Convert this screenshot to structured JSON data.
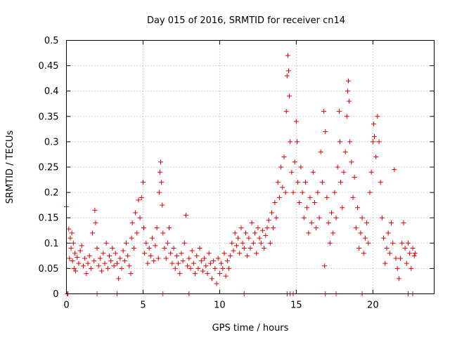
{
  "chart_data": {
    "type": "scatter",
    "title": "Day 015 of 2016, SRMTID for receiver cn14",
    "xlabel": "GPS time / hours",
    "ylabel": "SRMTID / TECUs",
    "xlim": [
      0,
      24
    ],
    "ylim": [
      0,
      0.5
    ],
    "x_ticks": [
      0,
      5,
      10,
      15,
      20
    ],
    "x_tick_labels": [
      "0",
      "5",
      "10",
      "15",
      "20"
    ],
    "y_ticks": [
      0,
      0.05,
      0.1,
      0.15,
      0.2,
      0.25,
      0.3,
      0.35,
      0.4,
      0.45,
      0.5
    ],
    "y_tick_labels": [
      "0",
      "0.05",
      "0.1",
      "0.15",
      "0.2",
      "0.25",
      "0.3",
      "0.35",
      "0.4",
      "0.45",
      "0.5"
    ],
    "grid": true,
    "marker": "+",
    "color": "#e00000",
    "series": [
      {
        "name": "SRMTID",
        "points": [
          [
            0.0,
            0.172
          ],
          [
            0.1,
            0.0
          ],
          [
            0.15,
            0.128
          ],
          [
            0.2,
            0.07
          ],
          [
            0.25,
            0.11
          ],
          [
            0.3,
            0.09
          ],
          [
            0.35,
            0.12
          ],
          [
            0.4,
            0.065
          ],
          [
            0.45,
            0.1
          ],
          [
            0.5,
            0.05
          ],
          [
            0.55,
            0.08
          ],
          [
            0.6,
            0.045
          ],
          [
            0.7,
            0.072
          ],
          [
            0.8,
            0.06
          ],
          [
            0.9,
            0.085
          ],
          [
            1.0,
            0.095
          ],
          [
            1.1,
            0.055
          ],
          [
            1.2,
            0.07
          ],
          [
            1.3,
            0.04
          ],
          [
            1.4,
            0.06
          ],
          [
            1.5,
            0.075
          ],
          [
            1.6,
            0.05
          ],
          [
            1.7,
            0.12
          ],
          [
            1.8,
            0.065
          ],
          [
            1.85,
            0.165
          ],
          [
            1.9,
            0.14
          ],
          [
            2.0,
            0.09
          ],
          [
            2.1,
            0.055
          ],
          [
            2.2,
            0.07
          ],
          [
            2.3,
            0.045
          ],
          [
            2.4,
            0.08
          ],
          [
            2.5,
            0.06
          ],
          [
            2.6,
            0.1
          ],
          [
            2.7,
            0.05
          ],
          [
            2.8,
            0.075
          ],
          [
            2.9,
            0.065
          ],
          [
            3.0,
            0.09
          ],
          [
            3.1,
            0.055
          ],
          [
            3.2,
            0.08
          ],
          [
            3.3,
            0.06
          ],
          [
            3.4,
            0.03
          ],
          [
            3.5,
            0.07
          ],
          [
            3.6,
            0.05
          ],
          [
            3.7,
            0.085
          ],
          [
            3.8,
            0.065
          ],
          [
            3.9,
            0.1
          ],
          [
            4.0,
            0.075
          ],
          [
            4.1,
            0.055
          ],
          [
            4.2,
            0.04
          ],
          [
            4.25,
            0.11
          ],
          [
            4.3,
            0.14
          ],
          [
            4.4,
            0.09
          ],
          [
            4.5,
            0.16
          ],
          [
            4.6,
            0.12
          ],
          [
            4.7,
            0.185
          ],
          [
            4.8,
            0.15
          ],
          [
            4.9,
            0.19
          ],
          [
            5.0,
            0.22
          ],
          [
            5.05,
            0.13
          ],
          [
            5.1,
            0.08
          ],
          [
            5.2,
            0.1
          ],
          [
            5.3,
            0.06
          ],
          [
            5.4,
            0.09
          ],
          [
            5.5,
            0.075
          ],
          [
            5.6,
            0.11
          ],
          [
            5.7,
            0.065
          ],
          [
            5.8,
            0.095
          ],
          [
            5.9,
            0.13
          ],
          [
            6.0,
            0.07
          ],
          [
            6.05,
            0.2
          ],
          [
            6.1,
            0.24
          ],
          [
            6.15,
            0.26
          ],
          [
            6.2,
            0.22
          ],
          [
            6.25,
            0.175
          ],
          [
            6.3,
            0.12
          ],
          [
            6.4,
            0.09
          ],
          [
            6.5,
            0.07
          ],
          [
            6.6,
            0.1
          ],
          [
            6.7,
            0.13
          ],
          [
            6.8,
            0.08
          ],
          [
            6.9,
            0.06
          ],
          [
            7.0,
            0.09
          ],
          [
            7.1,
            0.05
          ],
          [
            7.2,
            0.075
          ],
          [
            7.3,
            0.06
          ],
          [
            7.4,
            0.04
          ],
          [
            7.5,
            0.08
          ],
          [
            7.6,
            0.065
          ],
          [
            7.7,
            0.1
          ],
          [
            7.8,
            0.155
          ],
          [
            7.9,
            0.055
          ],
          [
            8.0,
            0.07
          ],
          [
            8.1,
            0.05
          ],
          [
            8.2,
            0.085
          ],
          [
            8.3,
            0.06
          ],
          [
            8.4,
            0.04
          ],
          [
            8.5,
            0.075
          ],
          [
            8.6,
            0.05
          ],
          [
            8.7,
            0.09
          ],
          [
            8.8,
            0.065
          ],
          [
            8.9,
            0.045
          ],
          [
            9.0,
            0.07
          ],
          [
            9.1,
            0.055
          ],
          [
            9.2,
            0.04
          ],
          [
            9.3,
            0.08
          ],
          [
            9.4,
            0.06
          ],
          [
            9.5,
            0.03
          ],
          [
            9.6,
            0.065
          ],
          [
            9.7,
            0.05
          ],
          [
            9.8,
            0.02
          ],
          [
            9.9,
            0.07
          ],
          [
            10.0,
            0.04
          ],
          [
            10.1,
            0.06
          ],
          [
            10.2,
            0.05
          ],
          [
            10.3,
            0.08
          ],
          [
            10.4,
            0.035
          ],
          [
            10.5,
            0.065
          ],
          [
            10.6,
            0.05
          ],
          [
            10.7,
            0.075
          ],
          [
            10.8,
            0.1
          ],
          [
            10.9,
            0.085
          ],
          [
            11.0,
            0.12
          ],
          [
            11.1,
            0.095
          ],
          [
            11.2,
            0.11
          ],
          [
            11.3,
            0.08
          ],
          [
            11.4,
            0.13
          ],
          [
            11.5,
            0.1
          ],
          [
            11.6,
            0.09
          ],
          [
            11.7,
            0.12
          ],
          [
            11.8,
            0.075
          ],
          [
            11.9,
            0.11
          ],
          [
            12.0,
            0.09
          ],
          [
            12.1,
            0.14
          ],
          [
            12.2,
            0.1
          ],
          [
            12.3,
            0.12
          ],
          [
            12.4,
            0.08
          ],
          [
            12.5,
            0.13
          ],
          [
            12.6,
            0.11
          ],
          [
            12.7,
            0.1
          ],
          [
            12.8,
            0.125
          ],
          [
            12.9,
            0.09
          ],
          [
            13.0,
            0.115
          ],
          [
            13.1,
            0.13
          ],
          [
            13.2,
            0.145
          ],
          [
            13.3,
            0.1
          ],
          [
            13.4,
            0.16
          ],
          [
            13.5,
            0.13
          ],
          [
            13.6,
            0.18
          ],
          [
            13.7,
            0.15
          ],
          [
            13.8,
            0.22
          ],
          [
            13.9,
            0.19
          ],
          [
            14.0,
            0.25
          ],
          [
            14.1,
            0.21
          ],
          [
            14.2,
            0.27
          ],
          [
            14.3,
            0.2
          ],
          [
            14.35,
            0.36
          ],
          [
            14.4,
            0.43
          ],
          [
            14.45,
            0.47
          ],
          [
            14.5,
            0.44
          ],
          [
            14.55,
            0.39
          ],
          [
            14.6,
            0.3
          ],
          [
            14.7,
            0.24
          ],
          [
            14.8,
            0.2
          ],
          [
            14.9,
            0.26
          ],
          [
            15.0,
            0.34
          ],
          [
            15.05,
            0.3
          ],
          [
            15.1,
            0.22
          ],
          [
            15.2,
            0.18
          ],
          [
            15.3,
            0.25
          ],
          [
            15.4,
            0.2
          ],
          [
            15.5,
            0.15
          ],
          [
            15.6,
            0.22
          ],
          [
            15.7,
            0.17
          ],
          [
            15.8,
            0.12
          ],
          [
            15.9,
            0.19
          ],
          [
            16.0,
            0.14
          ],
          [
            16.1,
            0.24
          ],
          [
            16.2,
            0.18
          ],
          [
            16.3,
            0.13
          ],
          [
            16.4,
            0.2
          ],
          [
            16.5,
            0.15
          ],
          [
            16.6,
            0.28
          ],
          [
            16.7,
            0.22
          ],
          [
            16.8,
            0.36
          ],
          [
            16.85,
            0.055
          ],
          [
            16.9,
            0.32
          ],
          [
            17.0,
            0.19
          ],
          [
            17.1,
            0.14
          ],
          [
            17.2,
            0.1
          ],
          [
            17.3,
            0.16
          ],
          [
            17.4,
            0.12
          ],
          [
            17.5,
            0.2
          ],
          [
            17.6,
            0.15
          ],
          [
            17.7,
            0.25
          ],
          [
            17.8,
            0.36
          ],
          [
            17.85,
            0.3
          ],
          [
            17.9,
            0.22
          ],
          [
            18.0,
            0.17
          ],
          [
            18.1,
            0.24
          ],
          [
            18.2,
            0.28
          ],
          [
            18.3,
            0.35
          ],
          [
            18.35,
            0.4
          ],
          [
            18.4,
            0.42
          ],
          [
            18.45,
            0.38
          ],
          [
            18.5,
            0.3
          ],
          [
            18.6,
            0.26
          ],
          [
            18.7,
            0.19
          ],
          [
            18.8,
            0.23
          ],
          [
            18.9,
            0.13
          ],
          [
            19.0,
            0.17
          ],
          [
            19.1,
            0.09
          ],
          [
            19.2,
            0.12
          ],
          [
            19.3,
            0.15
          ],
          [
            19.4,
            0.08
          ],
          [
            19.5,
            0.11
          ],
          [
            19.6,
            0.14
          ],
          [
            19.7,
            0.1
          ],
          [
            19.8,
            0.2
          ],
          [
            19.9,
            0.24
          ],
          [
            20.0,
            0.3
          ],
          [
            20.05,
            0.335
          ],
          [
            20.1,
            0.31
          ],
          [
            20.2,
            0.27
          ],
          [
            20.3,
            0.35
          ],
          [
            20.4,
            0.3
          ],
          [
            20.5,
            0.22
          ],
          [
            20.6,
            0.15
          ],
          [
            20.7,
            0.11
          ],
          [
            20.8,
            0.06
          ],
          [
            20.9,
            0.09
          ],
          [
            21.0,
            0.12
          ],
          [
            21.1,
            0.08
          ],
          [
            21.2,
            0.14
          ],
          [
            21.3,
            0.1
          ],
          [
            21.4,
            0.245
          ],
          [
            21.5,
            0.07
          ],
          [
            21.6,
            0.05
          ],
          [
            21.7,
            0.03
          ],
          [
            21.8,
            0.07
          ],
          [
            21.9,
            0.1
          ],
          [
            22.0,
            0.14
          ],
          [
            22.1,
            0.09
          ],
          [
            22.2,
            0.06
          ],
          [
            22.3,
            0.1
          ],
          [
            22.4,
            0.08
          ],
          [
            22.5,
            0.05
          ],
          [
            22.6,
            0.09
          ],
          [
            22.7,
            0.075
          ],
          [
            22.75,
            0.08
          ]
        ]
      }
    ],
    "zero_points_x": [
      0.05,
      2.0,
      3.3,
      6.3,
      8.0,
      11.6,
      14.4,
      14.6,
      14.8,
      16.9,
      17.6,
      19.3,
      22.3,
      22.6
    ]
  }
}
